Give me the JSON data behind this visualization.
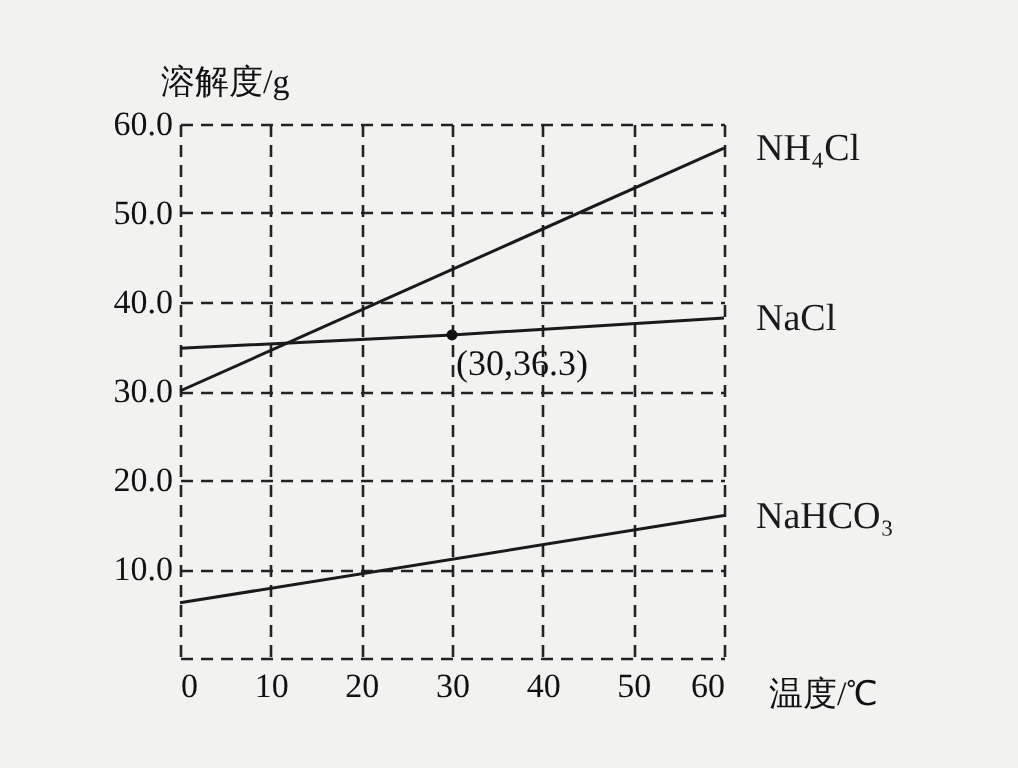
{
  "chart_data": {
    "type": "line",
    "xlabel": "温度/℃",
    "ylabel": "溶解度/g",
    "xlim": [
      0,
      60
    ],
    "xticks": [
      0,
      10,
      20,
      30,
      40,
      50,
      60
    ],
    "ylim": [
      0,
      60
    ],
    "yticks": [
      {
        "value": 0,
        "label": null
      },
      {
        "value": 10,
        "label": "10.0"
      },
      {
        "value": 20,
        "label": "20.0"
      },
      {
        "value": 30,
        "label": "30.0"
      },
      {
        "value": 40,
        "label": "40.0"
      },
      {
        "value": 50,
        "label": "50.0"
      },
      {
        "value": 60,
        "label": "60.0"
      }
    ],
    "grid": true,
    "line_style": "solid",
    "marker": "none",
    "series": [
      {
        "name": "NH₄Cl",
        "color": "#1a1a1a",
        "x": [
          0,
          60
        ],
        "values": [
          30,
          57.3
        ]
      },
      {
        "name": "NaCl",
        "color": "#1a1a1a",
        "x": [
          0,
          30,
          60
        ],
        "values": [
          34.8,
          36.3,
          38.2
        ]
      },
      {
        "name": "NaHCO₃",
        "color": "#1a1a1a",
        "x": [
          0,
          60
        ],
        "values": [
          6.2,
          16
        ]
      }
    ],
    "annotations": [
      {
        "text": "(30,36.3)",
        "x": 30,
        "y": 36.3
      }
    ]
  }
}
